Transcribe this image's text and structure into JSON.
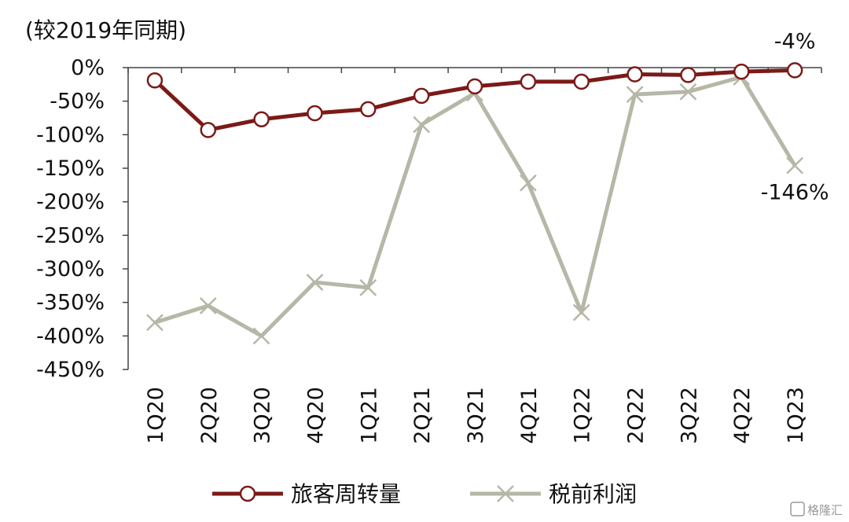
{
  "chart_data": {
    "type": "line",
    "unit_label": "(较2019年同期)",
    "categories": [
      "1Q20",
      "2Q20",
      "3Q20",
      "4Q20",
      "1Q21",
      "2Q21",
      "3Q21",
      "4Q21",
      "1Q22",
      "2Q22",
      "3Q22",
      "4Q22",
      "1Q23"
    ],
    "y_ticks": [
      "0%",
      "-50%",
      "-100%",
      "-150%",
      "-200%",
      "-250%",
      "-300%",
      "-350%",
      "-400%",
      "-450%"
    ],
    "ylim": [
      -450,
      0
    ],
    "grid": false,
    "legend_position": "bottom",
    "series": [
      {
        "name": "旅客周转量",
        "color": "#7b1a18",
        "marker": "circle",
        "values": [
          -19,
          -93,
          -77,
          -68,
          -62,
          -42,
          -28,
          -21,
          -21,
          -10,
          -11,
          -6,
          -4
        ]
      },
      {
        "name": "税前利润",
        "color": "#b7b7a8",
        "marker": "x",
        "values": [
          -380,
          -355,
          -400,
          -320,
          -328,
          -85,
          -38,
          -172,
          -365,
          -40,
          -36,
          -14,
          -146
        ]
      }
    ],
    "annotations": [
      {
        "text": "-4%",
        "series": 0,
        "index": 12
      },
      {
        "text": "-146%",
        "series": 1,
        "index": 12
      }
    ]
  },
  "watermark": "格隆汇"
}
